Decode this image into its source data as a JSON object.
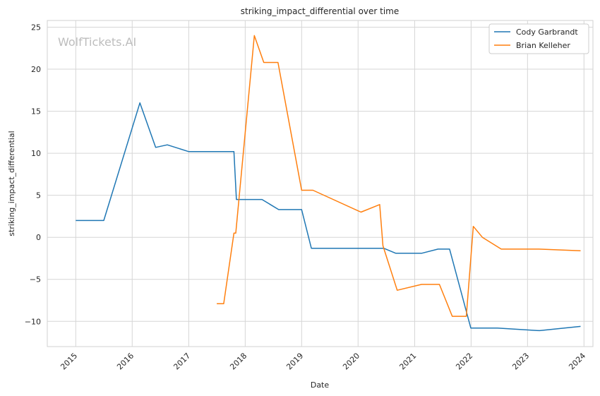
{
  "chart_data": {
    "type": "line",
    "title": "striking_impact_differential over time",
    "xlabel": "Date",
    "ylabel": "striking_impact_differential",
    "watermark": "WolfTickets.AI",
    "xlim": [
      "2014-07-01",
      "2024-02-28"
    ],
    "ylim": [
      -13,
      25.8
    ],
    "x_ticks": [
      "2015",
      "2016",
      "2017",
      "2018",
      "2019",
      "2020",
      "2021",
      "2022",
      "2023",
      "2024"
    ],
    "y_ticks": [
      -10,
      -5,
      0,
      5,
      10,
      15,
      20,
      25
    ],
    "y_tick_labels": [
      "−10",
      "−5",
      "0",
      "5",
      "10",
      "15",
      "20",
      "25"
    ],
    "grid": true,
    "legend_position": "top-right",
    "series": [
      {
        "name": "Cody Garbrandt",
        "color": "#1f77b4",
        "points": [
          [
            "2015-01-01",
            2.0
          ],
          [
            "2015-07-01",
            2.0
          ],
          [
            "2016-02-20",
            16.0
          ],
          [
            "2016-06-01",
            10.7
          ],
          [
            "2016-08-15",
            11.0
          ],
          [
            "2017-01-01",
            10.2
          ],
          [
            "2017-10-20",
            10.2
          ],
          [
            "2017-11-05",
            4.5
          ],
          [
            "2018-04-20",
            4.5
          ],
          [
            "2018-08-05",
            3.3
          ],
          [
            "2019-01-01",
            3.3
          ],
          [
            "2019-03-05",
            -1.3
          ],
          [
            "2020-06-15",
            -1.3
          ],
          [
            "2020-09-01",
            -1.9
          ],
          [
            "2021-02-15",
            -1.9
          ],
          [
            "2021-06-01",
            -1.4
          ],
          [
            "2021-08-15",
            -1.4
          ],
          [
            "2021-12-30",
            -10.8
          ],
          [
            "2022-06-20",
            -10.8
          ],
          [
            "2023-03-20",
            -11.1
          ],
          [
            "2023-12-10",
            -10.6
          ]
        ]
      },
      {
        "name": "Brian Kelleher",
        "color": "#ff7f0e",
        "points": [
          [
            "2017-07-01",
            -7.9
          ],
          [
            "2017-08-15",
            -7.9
          ],
          [
            "2017-10-20",
            0.5
          ],
          [
            "2017-11-01",
            0.5
          ],
          [
            "2018-03-01",
            24.0
          ],
          [
            "2018-05-01",
            20.8
          ],
          [
            "2018-08-01",
            20.8
          ],
          [
            "2019-01-01",
            5.6
          ],
          [
            "2019-03-15",
            5.6
          ],
          [
            "2020-01-20",
            3.0
          ],
          [
            "2020-05-20",
            3.9
          ],
          [
            "2020-06-10",
            -1.0
          ],
          [
            "2020-09-10",
            -6.3
          ],
          [
            "2021-02-15",
            -5.6
          ],
          [
            "2021-06-10",
            -5.6
          ],
          [
            "2021-09-01",
            -9.4
          ],
          [
            "2021-12-01",
            -9.4
          ],
          [
            "2022-01-15",
            1.3
          ],
          [
            "2022-03-15",
            0.0
          ],
          [
            "2022-07-15",
            -1.4
          ],
          [
            "2023-03-15",
            -1.4
          ],
          [
            "2023-12-10",
            -1.6
          ]
        ]
      }
    ]
  }
}
